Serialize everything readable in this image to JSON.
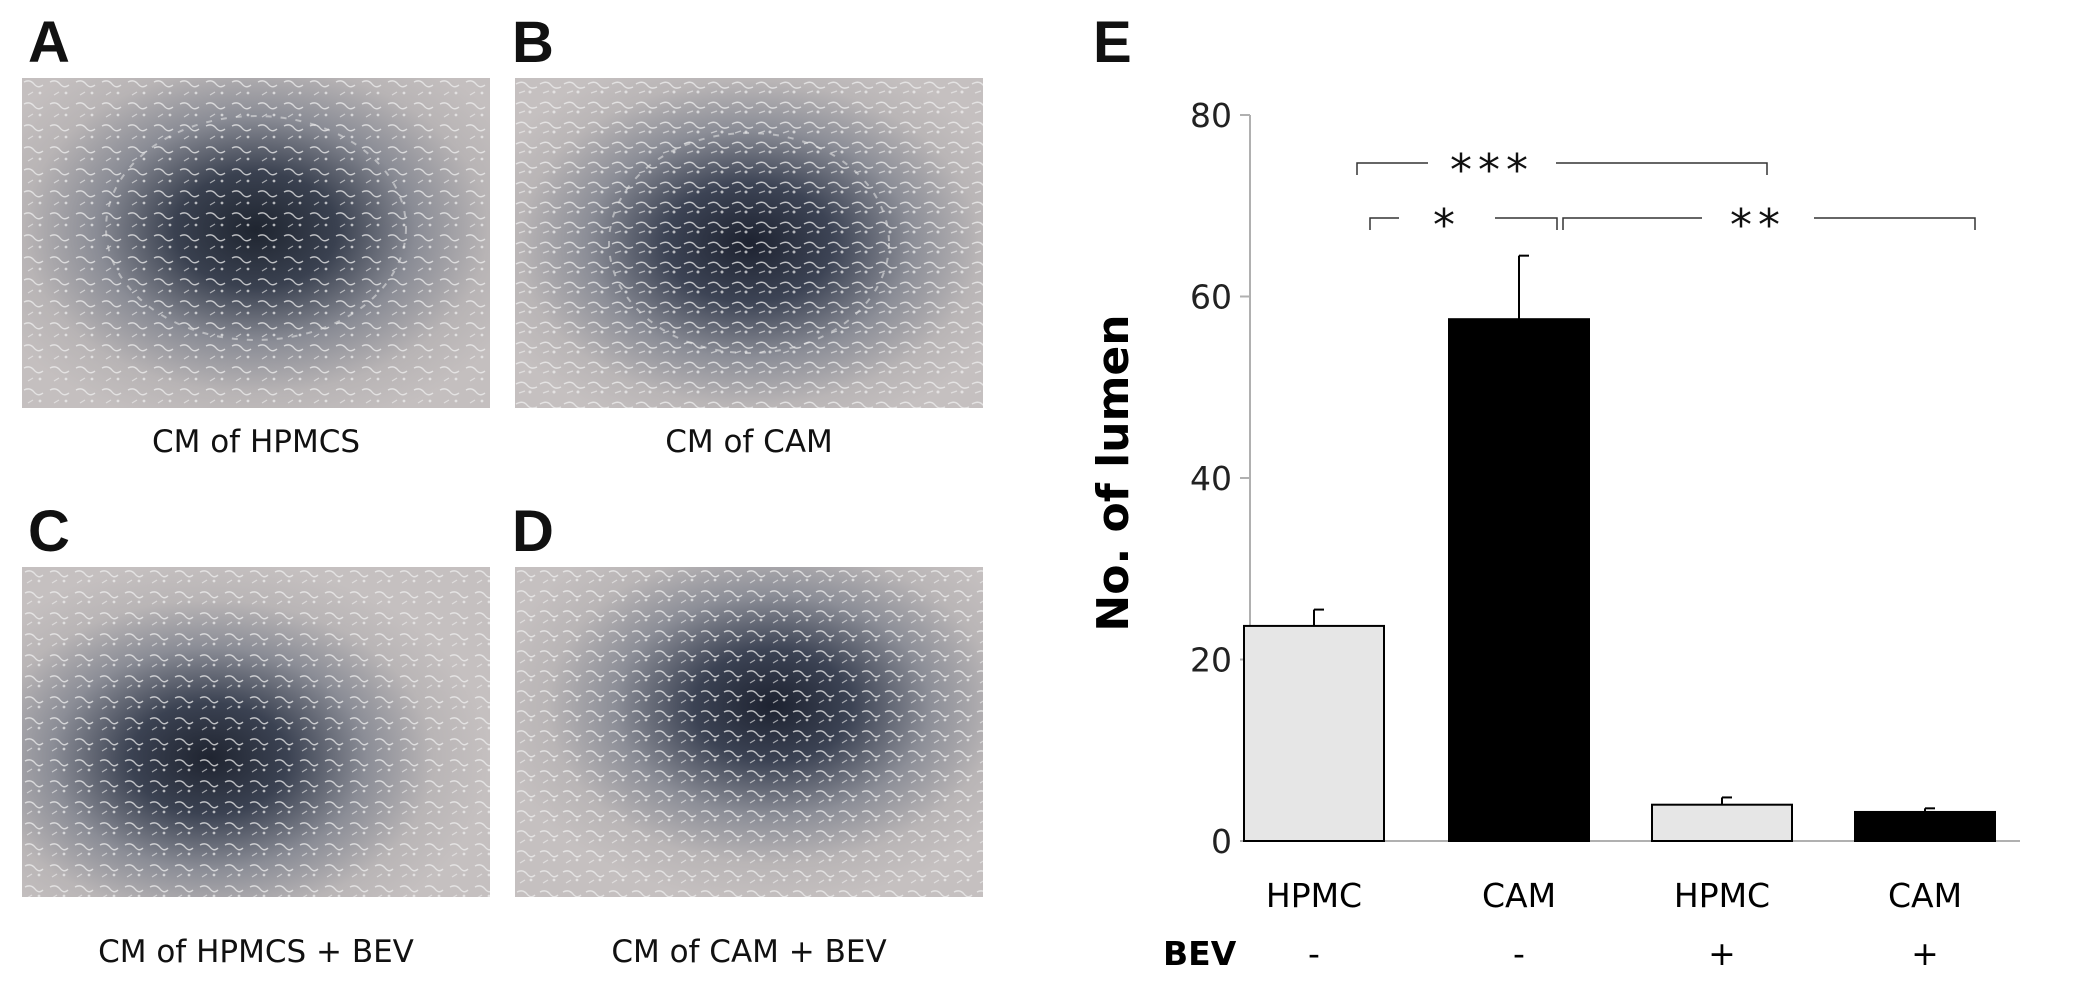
{
  "panels": {
    "a": {
      "letter": "A",
      "caption": "CM of HPMCS"
    },
    "b": {
      "letter": "B",
      "caption": "CM of CAM"
    },
    "c": {
      "letter": "C",
      "caption": "CM of HPMCS + BEV"
    },
    "d": {
      "letter": "D",
      "caption": "CM of CAM + BEV"
    },
    "e": {
      "letter": "E"
    }
  },
  "chart_data": {
    "type": "bar",
    "ylabel": "No. of lumen",
    "ylim": [
      0,
      80
    ],
    "yticks": [
      0,
      20,
      40,
      60,
      80
    ],
    "grid": false,
    "categories": [
      "HPMC",
      "CAM",
      "HPMC",
      "CAM"
    ],
    "values": [
      23.7,
      57.5,
      4.0,
      3.2
    ],
    "errors": [
      1.8,
      7.0,
      0.8,
      0.4
    ],
    "bar_colors": [
      "#e6e6e6",
      "#000000",
      "#e6e6e6",
      "#000000"
    ],
    "treatment_label": "BEV",
    "treatment": [
      "-",
      "-",
      "+",
      "+"
    ],
    "significance": [
      {
        "from": 0,
        "to": 2,
        "label": "***"
      },
      {
        "from": 0,
        "to": 1,
        "label": "*"
      },
      {
        "from": 1,
        "to": 3,
        "label": "**"
      }
    ]
  }
}
